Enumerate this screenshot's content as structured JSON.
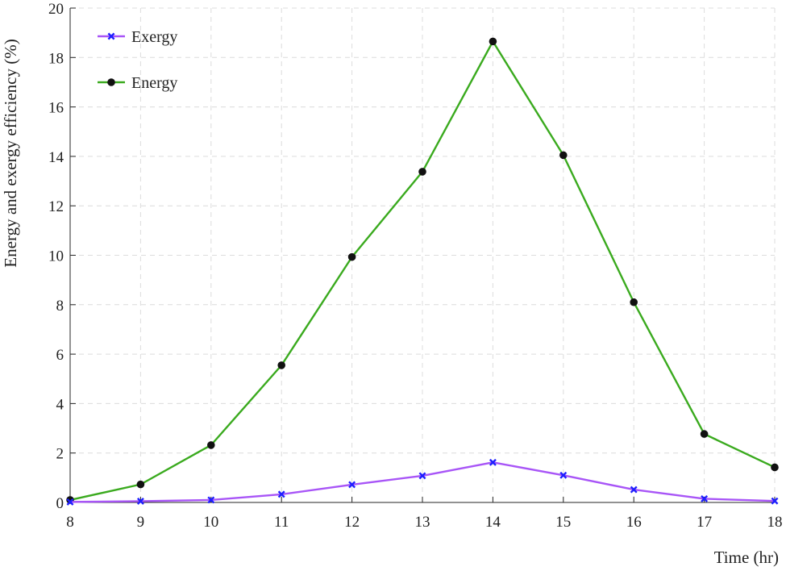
{
  "chart_data": {
    "type": "line",
    "title": "",
    "xlabel": "Time (hr)",
    "ylabel": "Energy and exergy efficiency (%)",
    "x": [
      8,
      9,
      10,
      11,
      12,
      13,
      14,
      15,
      16,
      17,
      18
    ],
    "xlim": [
      8,
      18
    ],
    "ylim": [
      0,
      20
    ],
    "xticks": [
      "8",
      "9",
      "10",
      "11",
      "12",
      "13",
      "14",
      "15",
      "16",
      "17",
      "18"
    ],
    "yticks": [
      "0",
      "2",
      "4",
      "6",
      "8",
      "10",
      "12",
      "14",
      "16",
      "18",
      "20"
    ],
    "grid": true,
    "legend_position": "top-left",
    "series": [
      {
        "name": "Exergy",
        "values": [
          0.02,
          0.05,
          0.1,
          0.33,
          0.72,
          1.08,
          1.62,
          1.1,
          0.52,
          0.15,
          0.06
        ],
        "line_color": "#a855f7",
        "marker": "x",
        "marker_color": "#1f1fff"
      },
      {
        "name": "Energy",
        "values": [
          0.1,
          0.73,
          2.32,
          5.55,
          9.93,
          13.38,
          18.65,
          14.05,
          8.1,
          2.77,
          1.42
        ],
        "line_color": "#3aaa1e",
        "marker": "circle",
        "marker_color": "#111111"
      }
    ]
  }
}
